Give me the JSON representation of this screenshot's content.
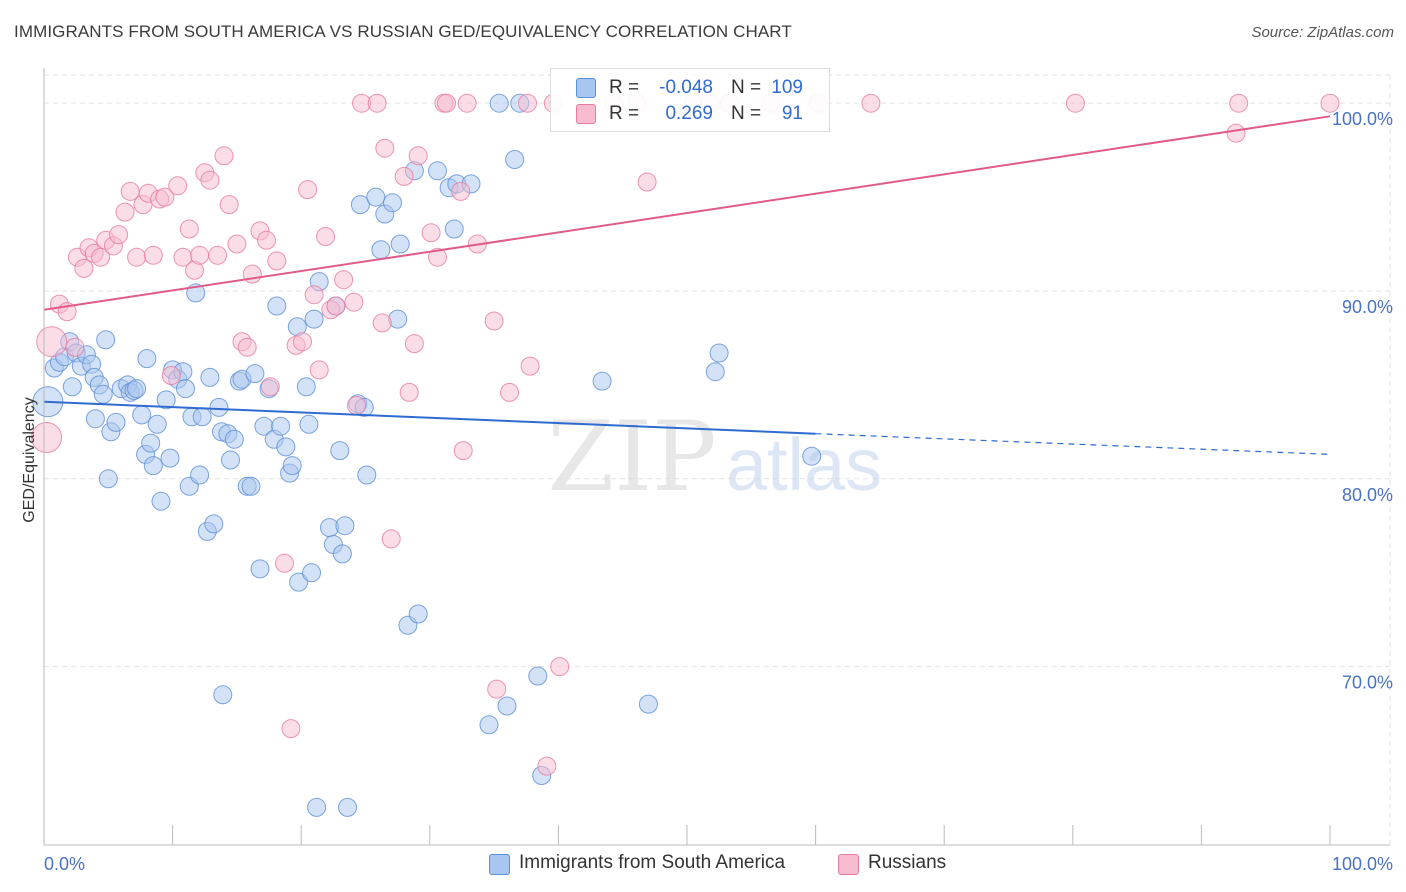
{
  "header": {
    "title": "IMMIGRANTS FROM SOUTH AMERICA VS RUSSIAN GED/EQUIVALENCY CORRELATION CHART",
    "source": "Source: ZipAtlas.com"
  },
  "watermark": {
    "zip": "ZIP",
    "atlas": "atlas"
  },
  "legend": {
    "r_label": "R =",
    "n_label": "N =",
    "series": [
      {
        "name": "Immigrants from South America",
        "r": "-0.048",
        "n": "109",
        "color": "#a9c6f0",
        "edge": "#5b8fd6"
      },
      {
        "name": "Russians",
        "r": "0.269",
        "n": "91",
        "color": "#f7bcd0",
        "edge": "#e87ba0"
      }
    ]
  },
  "chart_data": {
    "type": "scatter",
    "title": "IMMIGRANTS FROM SOUTH AMERICA VS RUSSIAN GED/EQUIVALENCY CORRELATION CHART",
    "xlabel": "",
    "ylabel": "GED/Equivalency",
    "xlim": [
      0,
      100
    ],
    "ylim": [
      60.5,
      101.5
    ],
    "x_tick_labels": [
      "0.0%",
      "100.0%"
    ],
    "y_ticks": [
      70,
      80,
      90,
      100
    ],
    "y_tick_labels": [
      "70.0%",
      "80.0%",
      "90.0%",
      "100.0%"
    ],
    "grid": true,
    "series": [
      {
        "name": "Immigrants from South America",
        "color": "#a9c6f0",
        "edge": "#5b8fd6",
        "trend": {
          "x0": 0,
          "y0": 84.1,
          "x1": 60,
          "y1": 82.4,
          "dashed_to_x": 100,
          "dashed_to_y": 81.3,
          "color": "#2f6bd0"
        },
        "points": [
          [
            0.3,
            84.1
          ],
          [
            0.8,
            85.9
          ],
          [
            1.2,
            86.2
          ],
          [
            1.6,
            86.5
          ],
          [
            2.0,
            87.3
          ],
          [
            2.5,
            86.7
          ],
          [
            2.9,
            86.0
          ],
          [
            3.3,
            86.6
          ],
          [
            3.7,
            86.1
          ],
          [
            3.9,
            85.4
          ],
          [
            4.3,
            85.0
          ],
          [
            4.0,
            83.2
          ],
          [
            4.6,
            84.5
          ],
          [
            5.2,
            82.5
          ],
          [
            5.6,
            83.0
          ],
          [
            5.0,
            80.0
          ],
          [
            6.0,
            84.8
          ],
          [
            6.5,
            85.0
          ],
          [
            6.7,
            84.6
          ],
          [
            7.0,
            84.7
          ],
          [
            7.2,
            84.8
          ],
          [
            7.6,
            83.4
          ],
          [
            7.9,
            81.3
          ],
          [
            8.0,
            86.4
          ],
          [
            8.3,
            81.9
          ],
          [
            8.5,
            80.7
          ],
          [
            8.8,
            82.9
          ],
          [
            9.1,
            78.8
          ],
          [
            9.5,
            84.2
          ],
          [
            9.8,
            81.1
          ],
          [
            10.0,
            85.8
          ],
          [
            10.4,
            85.3
          ],
          [
            10.8,
            85.7
          ],
          [
            11.0,
            84.8
          ],
          [
            11.3,
            79.6
          ],
          [
            11.5,
            83.3
          ],
          [
            11.8,
            89.9
          ],
          [
            12.1,
            80.2
          ],
          [
            12.3,
            83.3
          ],
          [
            12.7,
            77.2
          ],
          [
            12.9,
            85.4
          ],
          [
            13.2,
            77.6
          ],
          [
            13.6,
            83.8
          ],
          [
            13.8,
            82.5
          ],
          [
            14.3,
            82.4
          ],
          [
            14.5,
            81.0
          ],
          [
            14.8,
            82.1
          ],
          [
            15.2,
            85.2
          ],
          [
            15.4,
            85.3
          ],
          [
            15.8,
            79.6
          ],
          [
            16.1,
            79.6
          ],
          [
            16.4,
            85.6
          ],
          [
            16.8,
            75.2
          ],
          [
            17.1,
            82.8
          ],
          [
            17.5,
            84.8
          ],
          [
            17.9,
            82.1
          ],
          [
            18.1,
            89.2
          ],
          [
            18.4,
            82.8
          ],
          [
            18.8,
            81.7
          ],
          [
            19.1,
            80.3
          ],
          [
            19.3,
            80.7
          ],
          [
            19.7,
            88.1
          ],
          [
            19.8,
            74.5
          ],
          [
            20.4,
            84.9
          ],
          [
            20.6,
            82.9
          ],
          [
            20.8,
            75.0
          ],
          [
            21.0,
            88.5
          ],
          [
            21.4,
            90.5
          ],
          [
            22.2,
            77.4
          ],
          [
            22.5,
            76.5
          ],
          [
            22.7,
            89.2
          ],
          [
            23.0,
            81.5
          ],
          [
            23.2,
            76.0
          ],
          [
            23.4,
            77.5
          ],
          [
            24.4,
            84.0
          ],
          [
            24.6,
            94.6
          ],
          [
            25.1,
            80.2
          ],
          [
            25.8,
            95.0
          ],
          [
            26.2,
            92.2
          ],
          [
            26.5,
            94.1
          ],
          [
            27.1,
            94.7
          ],
          [
            27.5,
            88.5
          ],
          [
            27.7,
            92.5
          ],
          [
            28.3,
            72.2
          ],
          [
            28.8,
            96.4
          ],
          [
            29.1,
            72.8
          ],
          [
            30.6,
            96.4
          ],
          [
            31.5,
            95.5
          ],
          [
            31.9,
            93.3
          ],
          [
            32.1,
            95.7
          ],
          [
            33.2,
            95.7
          ],
          [
            34.6,
            66.9
          ],
          [
            35.4,
            100.0
          ],
          [
            36.0,
            67.9
          ],
          [
            36.6,
            97.0
          ],
          [
            37.0,
            100.0
          ],
          [
            38.4,
            69.5
          ],
          [
            38.7,
            64.2
          ],
          [
            43.4,
            85.2
          ],
          [
            47.0,
            68.0
          ],
          [
            52.2,
            85.7
          ],
          [
            52.5,
            86.7
          ],
          [
            59.7,
            81.2
          ],
          [
            21.2,
            62.5
          ],
          [
            23.6,
            62.5
          ],
          [
            13.9,
            68.5
          ],
          [
            24.9,
            83.8
          ],
          [
            4.8,
            87.4
          ],
          [
            2.2,
            84.9
          ]
        ]
      },
      {
        "name": "Russians",
        "color": "#f7bcd0",
        "edge": "#e87ba0",
        "trend": {
          "x0": 0,
          "y0": 89.0,
          "x1": 100,
          "y1": 99.3,
          "color": "#e05a8a"
        },
        "points": [
          [
            0.2,
            82.2
          ],
          [
            0.6,
            87.3
          ],
          [
            1.2,
            89.3
          ],
          [
            1.8,
            88.9
          ],
          [
            2.4,
            87.0
          ],
          [
            2.6,
            91.8
          ],
          [
            3.1,
            91.2
          ],
          [
            3.5,
            92.3
          ],
          [
            3.9,
            92.0
          ],
          [
            4.4,
            91.8
          ],
          [
            4.8,
            92.7
          ],
          [
            5.4,
            92.4
          ],
          [
            5.8,
            93.0
          ],
          [
            6.3,
            94.2
          ],
          [
            6.7,
            95.3
          ],
          [
            7.2,
            91.8
          ],
          [
            7.7,
            94.6
          ],
          [
            8.1,
            95.2
          ],
          [
            8.5,
            91.9
          ],
          [
            9.0,
            94.9
          ],
          [
            9.4,
            95.0
          ],
          [
            9.9,
            85.5
          ],
          [
            10.4,
            95.6
          ],
          [
            10.8,
            91.8
          ],
          [
            11.3,
            93.3
          ],
          [
            11.7,
            91.1
          ],
          [
            12.1,
            91.9
          ],
          [
            12.5,
            96.3
          ],
          [
            12.9,
            95.9
          ],
          [
            13.5,
            91.9
          ],
          [
            14.0,
            97.2
          ],
          [
            14.4,
            94.6
          ],
          [
            15.0,
            92.5
          ],
          [
            15.4,
            87.3
          ],
          [
            15.8,
            87.0
          ],
          [
            16.2,
            90.9
          ],
          [
            16.8,
            93.2
          ],
          [
            17.3,
            92.7
          ],
          [
            17.6,
            84.9
          ],
          [
            18.1,
            91.6
          ],
          [
            18.7,
            75.5
          ],
          [
            19.2,
            66.7
          ],
          [
            19.6,
            87.1
          ],
          [
            20.1,
            87.3
          ],
          [
            20.5,
            95.4
          ],
          [
            21.0,
            89.8
          ],
          [
            21.4,
            85.8
          ],
          [
            21.9,
            92.9
          ],
          [
            22.3,
            89.0
          ],
          [
            22.7,
            89.2
          ],
          [
            23.3,
            90.6
          ],
          [
            24.1,
            89.4
          ],
          [
            24.3,
            83.9
          ],
          [
            24.7,
            100.0
          ],
          [
            25.9,
            100.0
          ],
          [
            26.3,
            88.3
          ],
          [
            26.5,
            97.6
          ],
          [
            27.0,
            76.8
          ],
          [
            28.0,
            96.1
          ],
          [
            28.4,
            84.6
          ],
          [
            28.8,
            87.2
          ],
          [
            29.1,
            97.2
          ],
          [
            30.1,
            93.1
          ],
          [
            30.6,
            91.8
          ],
          [
            31.1,
            100.0
          ],
          [
            31.3,
            100.0
          ],
          [
            32.4,
            95.3
          ],
          [
            32.6,
            81.5
          ],
          [
            32.9,
            100.0
          ],
          [
            33.7,
            92.5
          ],
          [
            35.0,
            88.4
          ],
          [
            35.2,
            68.8
          ],
          [
            36.2,
            84.6
          ],
          [
            37.6,
            100.0
          ],
          [
            37.8,
            86.0
          ],
          [
            39.1,
            64.7
          ],
          [
            39.6,
            100.0
          ],
          [
            40.1,
            70.0
          ],
          [
            44.3,
            100.0
          ],
          [
            46.1,
            100.0
          ],
          [
            46.9,
            95.8
          ],
          [
            50.5,
            100.0
          ],
          [
            51.8,
            100.0
          ],
          [
            53.3,
            100.0
          ],
          [
            56.5,
            100.0
          ],
          [
            60.2,
            100.0
          ],
          [
            64.3,
            100.0
          ],
          [
            80.2,
            100.0
          ],
          [
            92.7,
            98.4
          ],
          [
            92.9,
            100.0
          ],
          [
            100.0,
            100.0
          ]
        ]
      }
    ]
  }
}
